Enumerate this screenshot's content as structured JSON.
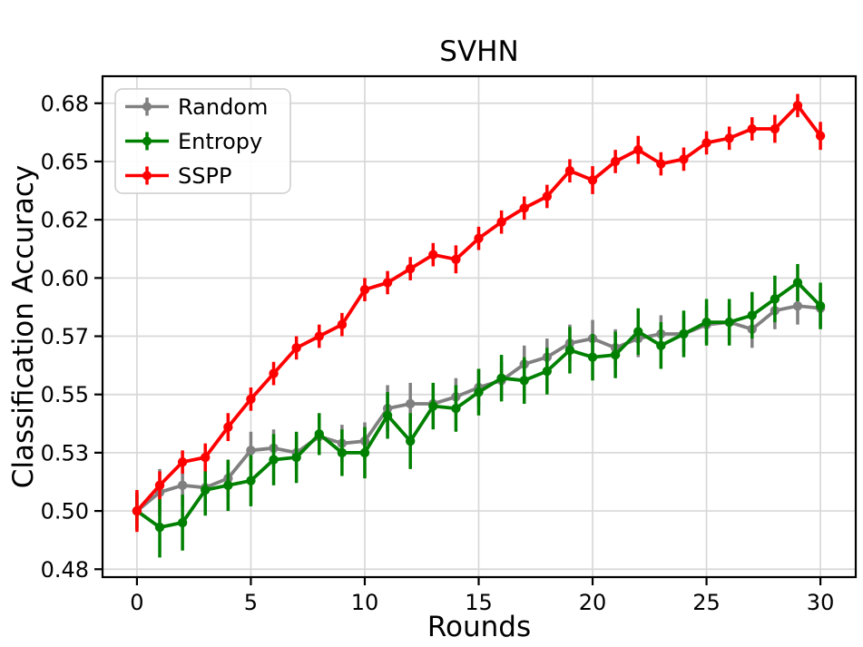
{
  "chart_data": {
    "type": "line",
    "title": "SVHN",
    "xlabel": "Rounds",
    "ylabel": "Classification Accuracy",
    "grid": true,
    "legend_position": "upper left",
    "xlim": [
      -1.51,
      31.55
    ],
    "ylim": [
      0.4716,
      0.6866
    ],
    "xticks": {
      "values": [
        0,
        5,
        10,
        15,
        20,
        25,
        30
      ],
      "labels": [
        "0",
        "5",
        "10",
        "15",
        "20",
        "25",
        "30"
      ]
    },
    "yticks": {
      "values": [
        0.475,
        0.5,
        0.525,
        0.55,
        0.575,
        0.6,
        0.625,
        0.65,
        0.675
      ],
      "labels": [
        "0.48",
        "0.50",
        "0.53",
        "0.55",
        "0.57",
        "0.60",
        "0.62",
        "0.65",
        "0.68"
      ]
    },
    "x": [
      0,
      1,
      2,
      3,
      4,
      5,
      6,
      7,
      8,
      9,
      10,
      11,
      12,
      13,
      14,
      15,
      16,
      17,
      18,
      19,
      20,
      21,
      22,
      23,
      24,
      25,
      26,
      27,
      28,
      29,
      30
    ],
    "series": [
      {
        "name": "Random",
        "color": "#808080",
        "values": [
          0.5,
          0.508,
          0.511,
          0.51,
          0.514,
          0.526,
          0.527,
          0.525,
          0.532,
          0.529,
          0.53,
          0.544,
          0.546,
          0.546,
          0.549,
          0.553,
          0.556,
          0.563,
          0.566,
          0.572,
          0.574,
          0.57,
          0.574,
          0.576,
          0.576,
          0.58,
          0.581,
          0.578,
          0.586,
          0.588,
          0.587
        ],
        "yerr": [
          0.007,
          0.01,
          0.009,
          0.008,
          0.008,
          0.008,
          0.008,
          0.007,
          0.008,
          0.008,
          0.008,
          0.01,
          0.009,
          0.008,
          0.008,
          0.008,
          0.008,
          0.008,
          0.008,
          0.008,
          0.008,
          0.008,
          0.008,
          0.008,
          0.008,
          0.008,
          0.008,
          0.008,
          0.008,
          0.008,
          0.008
        ]
      },
      {
        "name": "Entropy",
        "color": "#008000",
        "values": [
          0.5,
          0.493,
          0.495,
          0.509,
          0.511,
          0.513,
          0.522,
          0.523,
          0.533,
          0.525,
          0.525,
          0.541,
          0.53,
          0.545,
          0.544,
          0.551,
          0.557,
          0.556,
          0.56,
          0.569,
          0.566,
          0.567,
          0.577,
          0.571,
          0.576,
          0.581,
          0.581,
          0.584,
          0.591,
          0.598,
          0.588
        ],
        "yerr": [
          0.008,
          0.013,
          0.012,
          0.011,
          0.011,
          0.011,
          0.011,
          0.011,
          0.009,
          0.01,
          0.011,
          0.01,
          0.012,
          0.01,
          0.01,
          0.01,
          0.01,
          0.01,
          0.01,
          0.01,
          0.01,
          0.01,
          0.01,
          0.01,
          0.01,
          0.01,
          0.01,
          0.01,
          0.01,
          0.008,
          0.01
        ]
      },
      {
        "name": "SSPP",
        "color": "#ff0000",
        "values": [
          0.5,
          0.511,
          0.521,
          0.523,
          0.536,
          0.548,
          0.559,
          0.57,
          0.575,
          0.58,
          0.595,
          0.598,
          0.604,
          0.61,
          0.608,
          0.617,
          0.624,
          0.63,
          0.635,
          0.646,
          0.642,
          0.65,
          0.655,
          0.649,
          0.651,
          0.658,
          0.66,
          0.664,
          0.664,
          0.674,
          0.661
        ],
        "yerr": [
          0.009,
          0.006,
          0.005,
          0.006,
          0.006,
          0.005,
          0.005,
          0.005,
          0.005,
          0.005,
          0.005,
          0.005,
          0.005,
          0.005,
          0.006,
          0.005,
          0.005,
          0.005,
          0.005,
          0.005,
          0.006,
          0.005,
          0.006,
          0.005,
          0.005,
          0.005,
          0.005,
          0.005,
          0.006,
          0.005,
          0.006
        ]
      }
    ],
    "colors": {
      "grid": "#d8d8d8",
      "spine": "#000000",
      "background": "#ffffff"
    }
  }
}
